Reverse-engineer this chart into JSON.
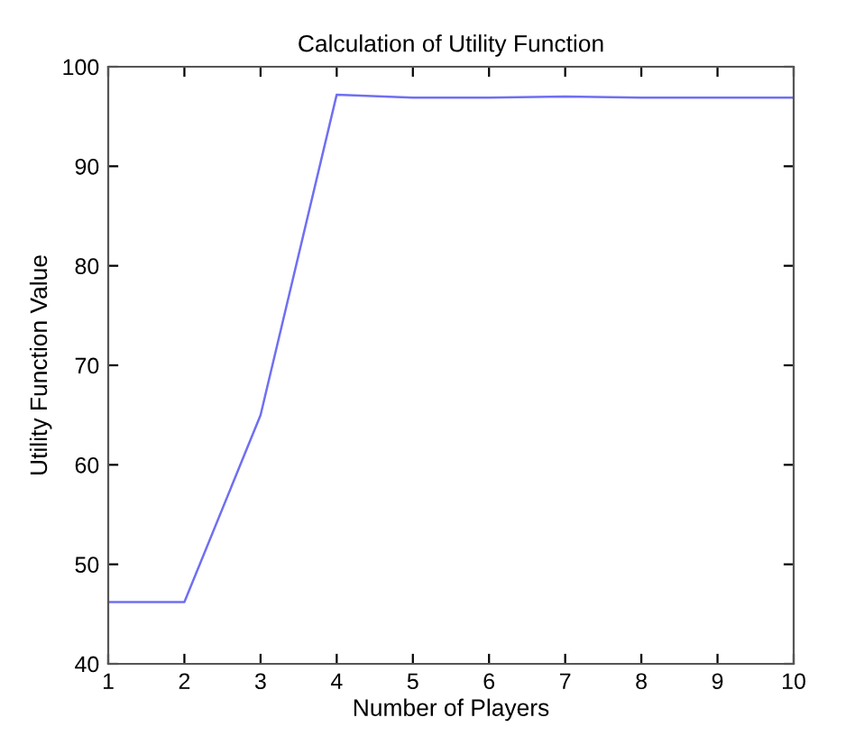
{
  "chart_data": {
    "type": "line",
    "title": "Calculation of Utility Function",
    "xlabel": "Number of Players",
    "ylabel": "Utility Function Value",
    "x": [
      1,
      2,
      3,
      4,
      5,
      6,
      7,
      8,
      9,
      10
    ],
    "series": [
      {
        "color": "#6f6ff2",
        "values": [
          46.2,
          46.2,
          65,
          97.2,
          96.9,
          96.9,
          97,
          96.9,
          96.9,
          96.9
        ]
      }
    ],
    "xlim": [
      1,
      10
    ],
    "xticks": [
      1,
      2,
      3,
      4,
      5,
      6,
      7,
      8,
      9,
      10
    ],
    "ylim": [
      40,
      100
    ],
    "yticks": [
      40,
      50,
      60,
      70,
      80,
      90,
      100
    ],
    "grid": false,
    "legend": false,
    "marker": "none",
    "line_style": "solid"
  }
}
